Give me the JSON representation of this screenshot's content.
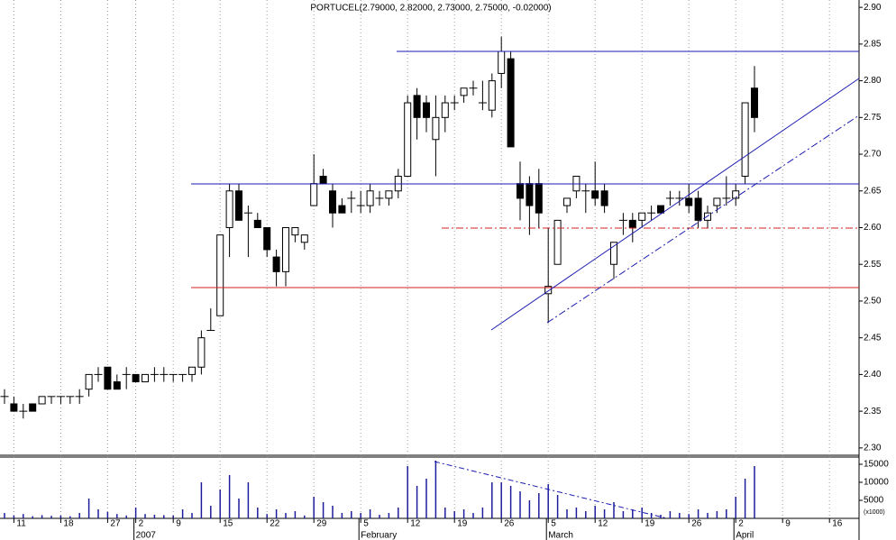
{
  "chart_data": {
    "type": "candlestick",
    "title": "PORTUCEL(2.79000, 2.82000, 2.73000, 2.75000, -0.02000)",
    "categories": [
      null,
      "11",
      null,
      null,
      null,
      null,
      "18",
      null,
      null,
      null,
      null,
      "27",
      null,
      null,
      "2",
      null,
      null,
      null,
      "9",
      null,
      null,
      null,
      null,
      "15",
      null,
      null,
      null,
      null,
      "22",
      null,
      null,
      null,
      null,
      "29",
      null,
      null,
      null,
      null,
      "5",
      null,
      null,
      null,
      null,
      "12",
      null,
      null,
      null,
      null,
      "19",
      null,
      null,
      null,
      null,
      "26",
      null,
      null,
      null,
      null,
      "5",
      null,
      null,
      null,
      null,
      "12",
      null,
      null,
      null,
      null,
      "19",
      null,
      null,
      null,
      null,
      "26",
      null,
      null,
      null,
      null,
      "2",
      null,
      null,
      null,
      null,
      "9",
      null,
      null,
      null,
      null,
      "16",
      null,
      null
    ],
    "months": [
      null,
      null,
      null,
      null,
      null,
      null,
      null,
      null,
      null,
      null,
      null,
      null,
      null,
      null,
      "2007",
      null,
      null,
      null,
      null,
      null,
      null,
      null,
      null,
      null,
      null,
      null,
      null,
      null,
      null,
      null,
      null,
      null,
      null,
      null,
      null,
      null,
      null,
      null,
      "February",
      null,
      null,
      null,
      null,
      null,
      null,
      null,
      null,
      null,
      null,
      null,
      null,
      null,
      null,
      null,
      null,
      null,
      null,
      null,
      "March",
      null,
      null,
      null,
      null,
      null,
      null,
      null,
      null,
      null,
      null,
      null,
      null,
      null,
      null,
      null,
      null,
      null,
      null,
      null,
      "April",
      null,
      null,
      null,
      null,
      null,
      null,
      null,
      null,
      null,
      null,
      null,
      null
    ],
    "open": [
      2.37,
      2.36,
      2.35,
      2.36,
      2.36,
      2.37,
      2.37,
      2.37,
      2.37,
      2.38,
      2.4,
      2.41,
      2.39,
      2.4,
      2.4,
      2.39,
      2.4,
      2.4,
      2.4,
      2.4,
      2.4,
      2.41,
      2.46,
      2.48,
      2.6,
      2.65,
      2.62,
      2.61,
      2.6,
      2.56,
      2.54,
      2.59,
      2.58,
      2.63,
      2.67,
      2.65,
      2.63,
      2.64,
      2.63,
      2.63,
      2.64,
      2.64,
      2.65,
      2.67,
      2.78,
      2.77,
      2.72,
      2.75,
      2.77,
      2.78,
      2.79,
      2.77,
      2.76,
      2.81,
      2.83,
      2.66,
      2.66,
      2.66,
      2.51,
      2.55,
      2.63,
      2.65,
      2.65,
      2.65,
      2.65,
      2.55,
      2.61,
      2.61,
      2.61,
      2.62,
      2.63,
      2.64,
      2.64,
      2.64,
      2.64,
      2.61,
      2.63,
      2.64,
      2.64,
      2.67,
      2.79,
      null,
      null,
      null,
      null,
      null,
      null,
      null,
      null,
      null,
      null
    ],
    "high": [
      2.38,
      2.37,
      2.36,
      2.36,
      2.37,
      2.37,
      2.37,
      2.37,
      2.38,
      2.4,
      2.41,
      2.41,
      2.4,
      2.41,
      2.4,
      2.4,
      2.41,
      2.41,
      2.4,
      2.4,
      2.41,
      2.46,
      2.49,
      2.59,
      2.66,
      2.66,
      2.63,
      2.62,
      2.6,
      2.57,
      2.6,
      2.6,
      2.59,
      2.7,
      2.68,
      2.66,
      2.64,
      2.65,
      2.65,
      2.66,
      2.65,
      2.65,
      2.68,
      2.78,
      2.79,
      2.78,
      2.78,
      2.78,
      2.78,
      2.79,
      2.8,
      2.8,
      2.81,
      2.86,
      2.84,
      2.69,
      2.67,
      2.68,
      2.6,
      2.61,
      2.64,
      2.67,
      2.66,
      2.69,
      2.66,
      2.58,
      2.62,
      2.62,
      2.62,
      2.63,
      2.63,
      2.65,
      2.65,
      2.66,
      2.65,
      2.63,
      2.64,
      2.67,
      2.66,
      2.77,
      2.82,
      null,
      null,
      null,
      null,
      null,
      null,
      null,
      null,
      null,
      null
    ],
    "low": [
      2.36,
      2.35,
      2.34,
      2.35,
      2.36,
      2.36,
      2.36,
      2.36,
      2.36,
      2.37,
      2.39,
      2.38,
      2.38,
      2.38,
      2.39,
      2.39,
      2.39,
      2.39,
      2.39,
      2.39,
      2.39,
      2.4,
      2.46,
      2.48,
      2.56,
      2.61,
      2.56,
      2.6,
      2.56,
      2.52,
      2.52,
      2.58,
      2.57,
      2.63,
      2.66,
      2.6,
      2.62,
      2.62,
      2.62,
      2.62,
      2.63,
      2.63,
      2.64,
      2.67,
      2.72,
      2.73,
      2.67,
      2.73,
      2.76,
      2.77,
      2.78,
      2.76,
      2.75,
      2.79,
      2.71,
      2.61,
      2.59,
      2.6,
      2.47,
      2.55,
      2.62,
      2.64,
      2.62,
      2.63,
      2.62,
      2.53,
      2.59,
      2.58,
      2.6,
      2.61,
      2.62,
      2.63,
      2.63,
      2.62,
      2.6,
      2.6,
      2.62,
      2.63,
      2.63,
      2.66,
      2.73,
      null,
      null,
      null,
      null,
      null,
      null,
      null,
      null,
      null,
      null
    ],
    "close": [
      2.37,
      2.35,
      2.35,
      2.35,
      2.37,
      2.37,
      2.37,
      2.37,
      2.37,
      2.4,
      2.4,
      2.38,
      2.38,
      2.4,
      2.39,
      2.4,
      2.4,
      2.4,
      2.4,
      2.4,
      2.41,
      2.45,
      2.46,
      2.59,
      2.65,
      2.61,
      2.62,
      2.6,
      2.57,
      2.54,
      2.6,
      2.6,
      2.59,
      2.66,
      2.66,
      2.62,
      2.62,
      2.64,
      2.63,
      2.65,
      2.64,
      2.65,
      2.67,
      2.77,
      2.75,
      2.75,
      2.75,
      2.77,
      2.77,
      2.79,
      2.79,
      2.77,
      2.8,
      2.84,
      2.71,
      2.64,
      2.63,
      2.62,
      2.52,
      2.61,
      2.64,
      2.67,
      2.65,
      2.64,
      2.63,
      2.58,
      2.61,
      2.6,
      2.62,
      2.62,
      2.62,
      2.64,
      2.64,
      2.63,
      2.61,
      2.62,
      2.64,
      2.64,
      2.65,
      2.77,
      2.75,
      null,
      null,
      null,
      null,
      null,
      null,
      null,
      null,
      null,
      null
    ],
    "volume": [
      1500,
      800,
      1200,
      600,
      900,
      700,
      800,
      600,
      1500,
      5500,
      2500,
      1800,
      1200,
      800,
      3000,
      1200,
      1000,
      900,
      800,
      2500,
      1500,
      10000,
      3500,
      8000,
      12000,
      5500,
      10000,
      3000,
      1200,
      2500,
      1500,
      2000,
      800,
      6000,
      4500,
      3500,
      1500,
      2000,
      1500,
      2500,
      1000,
      1500,
      3000,
      14500,
      9000,
      11000,
      16000,
      3000,
      2000,
      2500,
      1500,
      3000,
      10000,
      10000,
      9000,
      7500,
      5000,
      7000,
      9500,
      6500,
      2500,
      3000,
      2000,
      3500,
      2500,
      4500,
      2000,
      2500,
      3000,
      1500,
      1000,
      2000,
      1500,
      1200,
      2500,
      1500,
      2000,
      2500,
      6000,
      11000,
      14500,
      null,
      null,
      null,
      null,
      null,
      null,
      null,
      null,
      null,
      null
    ],
    "up_color": "#ffffff",
    "down_color": "#000000",
    "volume_color": "#1c1c9c",
    "ylim": [
      2.29,
      2.91
    ],
    "yticks": [
      {
        "value": 2.3,
        "label": "2.30"
      },
      {
        "value": 2.35,
        "label": "2.35"
      },
      {
        "value": 2.4,
        "label": "2.40"
      },
      {
        "value": 2.45,
        "label": "2.45"
      },
      {
        "value": 2.5,
        "label": "2.50"
      },
      {
        "value": 2.55,
        "label": "2.55"
      },
      {
        "value": 2.6,
        "label": "2.60"
      },
      {
        "value": 2.65,
        "label": "2.65"
      },
      {
        "value": 2.7,
        "label": "2.70"
      },
      {
        "value": 2.75,
        "label": "2.75"
      },
      {
        "value": 2.8,
        "label": "2.80"
      },
      {
        "value": 2.85,
        "label": "2.85"
      },
      {
        "value": 2.9,
        "label": "2.90"
      }
    ],
    "y2lim": [
      0,
      17000
    ],
    "y2ticks": [
      5000,
      10000,
      15000
    ],
    "y2_label": "(x1000)"
  }
}
